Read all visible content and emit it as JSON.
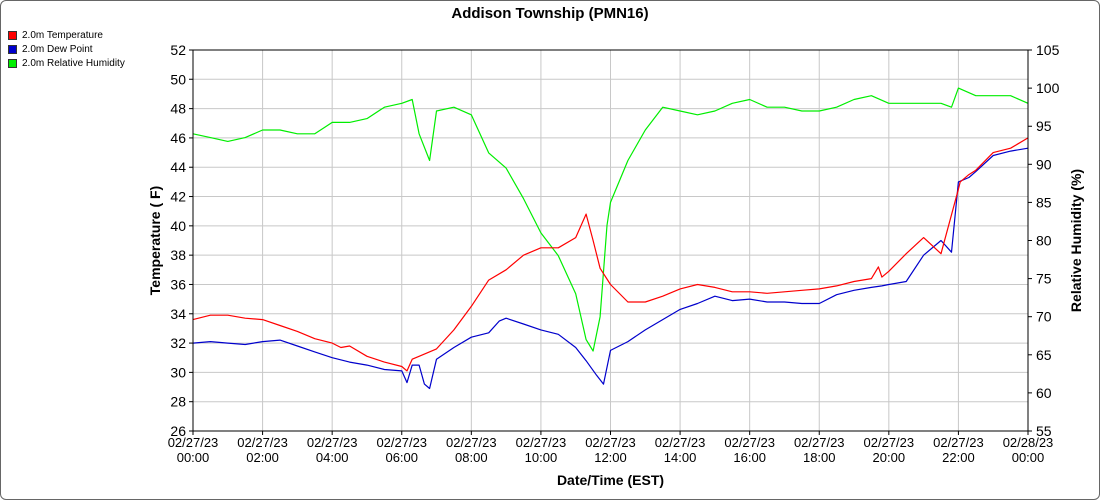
{
  "chart_data": {
    "type": "line",
    "title": "Addison Township (PMN16)",
    "xlabel": "Date/Time (EST)",
    "ylabel": "Temperature ( F)",
    "y2label": "Relative Humidity (%)",
    "ylim": [
      26,
      52
    ],
    "y2lim": [
      55,
      105
    ],
    "yticks": [
      "26",
      "28",
      "30",
      "32",
      "34",
      "36",
      "38",
      "40",
      "42",
      "44",
      "46",
      "48",
      "50",
      "52"
    ],
    "y2ticks": [
      "55",
      "60",
      "65",
      "70",
      "75",
      "80",
      "85",
      "90",
      "95",
      "100",
      "105"
    ],
    "xticks": [
      {
        "date": "02/27/23",
        "time": "00:00"
      },
      {
        "date": "02/27/23",
        "time": "02:00"
      },
      {
        "date": "02/27/23",
        "time": "04:00"
      },
      {
        "date": "02/27/23",
        "time": "06:00"
      },
      {
        "date": "02/27/23",
        "time": "08:00"
      },
      {
        "date": "02/27/23",
        "time": "10:00"
      },
      {
        "date": "02/27/23",
        "time": "12:00"
      },
      {
        "date": "02/27/23",
        "time": "14:00"
      },
      {
        "date": "02/27/23",
        "time": "16:00"
      },
      {
        "date": "02/27/23",
        "time": "18:00"
      },
      {
        "date": "02/27/23",
        "time": "20:00"
      },
      {
        "date": "02/27/23",
        "time": "22:00"
      },
      {
        "date": "02/28/23",
        "time": "00:00"
      }
    ],
    "grid": true,
    "legend_placement": "top-left",
    "series": [
      {
        "name": "2.0m Temperature",
        "color": "#ff0000",
        "axis": "left",
        "x": [
          0,
          0.5,
          1,
          1.5,
          2,
          2.5,
          3,
          3.5,
          4,
          4.25,
          4.5,
          5,
          5.5,
          6,
          6.15,
          6.3,
          6.5,
          7,
          7.5,
          8,
          8.5,
          9,
          9.5,
          10,
          10.5,
          11,
          11.3,
          11.5,
          11.7,
          12,
          12.5,
          13,
          13.5,
          14,
          14.5,
          15,
          15.5,
          16,
          16.5,
          17,
          17.5,
          18,
          18.5,
          19,
          19.5,
          19.7,
          19.8,
          20,
          20.5,
          21,
          21.5,
          22,
          22.05,
          22.3,
          22.5,
          23,
          23.5,
          24
        ],
        "y": [
          33.6,
          33.9,
          33.9,
          33.7,
          33.6,
          33.2,
          32.8,
          32.3,
          32,
          31.7,
          31.8,
          31.1,
          30.7,
          30.4,
          30.1,
          30.9,
          31.1,
          31.6,
          32.9,
          34.5,
          36.3,
          37,
          38,
          38.5,
          38.5,
          39.2,
          40.8,
          39,
          37.1,
          36,
          34.8,
          34.8,
          35.2,
          35.7,
          36,
          35.8,
          35.5,
          35.5,
          35.4,
          35.5,
          35.6,
          35.7,
          35.9,
          36.2,
          36.4,
          37.2,
          36.5,
          36.9,
          38.1,
          39.2,
          38.1,
          42.5,
          43,
          43.5,
          43.8,
          45,
          45.3,
          46
        ]
      },
      {
        "name": "2.0m Dew Point",
        "color": "#0000cc",
        "axis": "left",
        "x": [
          0,
          0.5,
          1,
          1.5,
          2,
          2.5,
          3,
          3.5,
          4,
          4.5,
          5,
          5.5,
          6,
          6.15,
          6.3,
          6.5,
          6.65,
          6.8,
          7,
          7.5,
          8,
          8.5,
          8.8,
          9,
          9.5,
          10,
          10.5,
          11,
          11.3,
          11.6,
          11.8,
          12,
          12.5,
          13,
          13.5,
          14,
          14.5,
          15,
          15.5,
          16,
          16.5,
          17,
          17.5,
          18,
          18.5,
          19,
          19.5,
          19.8,
          20,
          20.5,
          21,
          21.5,
          21.8,
          22,
          22.3,
          22.5,
          23,
          23.5,
          24
        ],
        "y": [
          32,
          32.1,
          32,
          31.9,
          32.1,
          32.2,
          31.8,
          31.4,
          31,
          30.7,
          30.5,
          30.2,
          30.1,
          29.3,
          30.5,
          30.5,
          29.2,
          28.9,
          30.9,
          31.7,
          32.4,
          32.7,
          33.5,
          33.7,
          33.3,
          32.9,
          32.6,
          31.7,
          30.8,
          29.8,
          29.2,
          31.5,
          32.1,
          32.9,
          33.6,
          34.3,
          34.7,
          35.2,
          34.9,
          35,
          34.8,
          34.8,
          34.7,
          34.7,
          35.3,
          35.6,
          35.8,
          35.9,
          36,
          36.2,
          38,
          39,
          38.2,
          43,
          43.3,
          43.7,
          44.8,
          45.1,
          45.3
        ]
      },
      {
        "name": "2.0m Relative Humidity",
        "color": "#00ee00",
        "axis": "right",
        "x": [
          0,
          0.5,
          1,
          1.5,
          2,
          2.5,
          3,
          3.5,
          4,
          4.5,
          5,
          5.5,
          6,
          6.3,
          6.5,
          6.8,
          7,
          7.5,
          8,
          8.5,
          9,
          9.5,
          10,
          10.5,
          11,
          11.3,
          11.5,
          11.7,
          11.9,
          12,
          12.5,
          13,
          13.5,
          14,
          14.5,
          15,
          15.5,
          16,
          16.5,
          17,
          17.5,
          18,
          18.5,
          19,
          19.5,
          20,
          20.5,
          21,
          21.5,
          21.8,
          22,
          22.5,
          23,
          23.5,
          24
        ],
        "y": [
          94,
          93.5,
          93,
          93.5,
          94.5,
          94.5,
          94,
          94,
          95.5,
          95.5,
          96,
          97.5,
          98,
          98.5,
          94,
          90.5,
          97,
          97.5,
          96.5,
          91.5,
          89.5,
          85.5,
          81,
          78,
          73,
          67,
          65.5,
          70,
          82,
          85,
          90.5,
          94.5,
          97.5,
          97,
          96.5,
          97,
          98,
          98.5,
          97.5,
          97.5,
          97,
          97,
          97.5,
          98.5,
          99,
          98,
          98,
          98,
          98,
          97.5,
          100,
          99,
          99,
          99,
          98
        ]
      }
    ]
  }
}
